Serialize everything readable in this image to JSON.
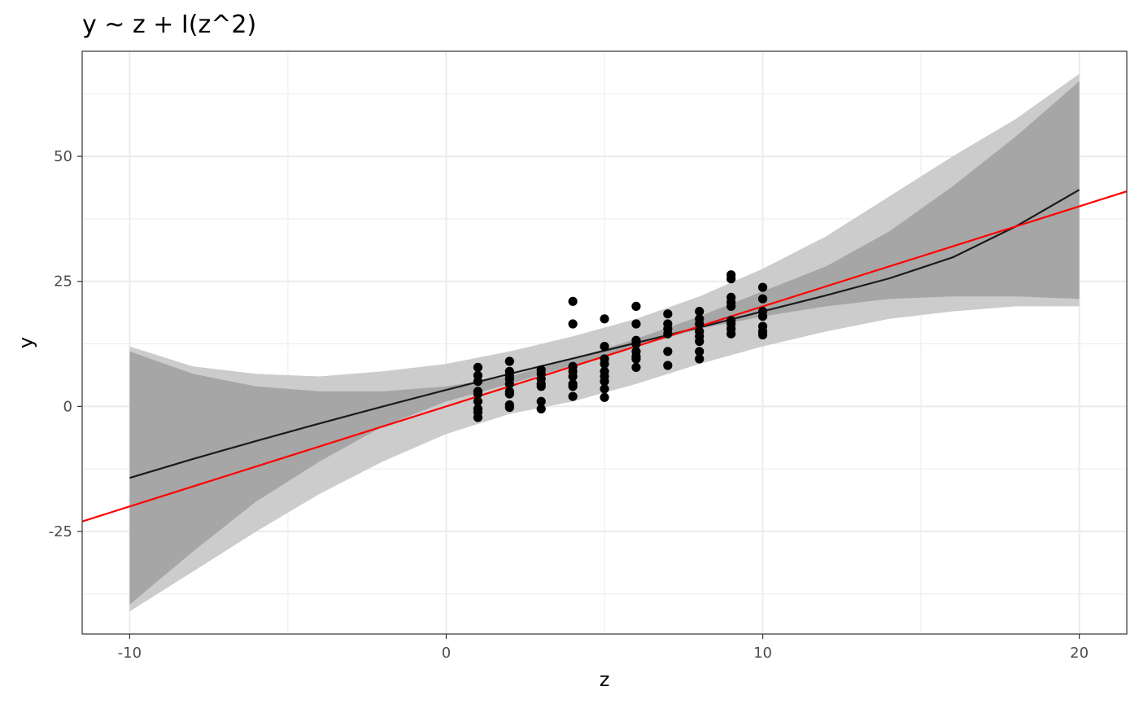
{
  "chart_data": {
    "type": "scatter",
    "title": "y ~ z + I(z^2)",
    "xlabel": "z",
    "ylabel": "y",
    "xlim": [
      -11.5,
      21.5
    ],
    "ylim": [
      -45.5,
      71
    ],
    "x_ticks": [
      -10,
      0,
      10,
      20
    ],
    "x_tick_labels": [
      "-10",
      "0",
      "10",
      "20"
    ],
    "x_minor_ticks": [
      -5,
      5,
      15
    ],
    "y_ticks": [
      -25,
      0,
      25,
      50
    ],
    "y_tick_labels": [
      "-25",
      "0",
      "25",
      "50"
    ],
    "y_minor_ticks": [
      -37.5,
      -12.5,
      12.5,
      37.5,
      62.5
    ],
    "grid": true,
    "legend": "none",
    "colors": {
      "points": "#000000",
      "fit_curve": "#1a1a1a",
      "reference_line": "#ff0000",
      "outer_band": "#cccccc",
      "inner_band": "#a6a6a6",
      "grid": "#ebebeb",
      "panel_border": "#333333"
    },
    "points": [
      {
        "x": 1,
        "y": 7.8
      },
      {
        "x": 1,
        "y": 6.2
      },
      {
        "x": 1,
        "y": 5.0
      },
      {
        "x": 1,
        "y": 3.0
      },
      {
        "x": 1,
        "y": 2.5
      },
      {
        "x": 1,
        "y": 1.0
      },
      {
        "x": 1,
        "y": -0.5
      },
      {
        "x": 1,
        "y": -1.2
      },
      {
        "x": 1,
        "y": -2.2
      },
      {
        "x": 2,
        "y": 9.0
      },
      {
        "x": 2,
        "y": 7.0
      },
      {
        "x": 2,
        "y": 6.2
      },
      {
        "x": 2,
        "y": 5.5
      },
      {
        "x": 2,
        "y": 4.5
      },
      {
        "x": 2,
        "y": 3.0
      },
      {
        "x": 2,
        "y": 2.5
      },
      {
        "x": 2,
        "y": 0.3
      },
      {
        "x": 2,
        "y": -0.2
      },
      {
        "x": 3,
        "y": 7.3
      },
      {
        "x": 3,
        "y": 6.5
      },
      {
        "x": 3,
        "y": 5.5
      },
      {
        "x": 3,
        "y": 4.5
      },
      {
        "x": 3,
        "y": 4.0
      },
      {
        "x": 3,
        "y": 1.0
      },
      {
        "x": 3,
        "y": -0.5
      },
      {
        "x": 4,
        "y": 21.0
      },
      {
        "x": 4,
        "y": 16.5
      },
      {
        "x": 4,
        "y": 8.0
      },
      {
        "x": 4,
        "y": 7.0
      },
      {
        "x": 4,
        "y": 6.0
      },
      {
        "x": 4,
        "y": 4.5
      },
      {
        "x": 4,
        "y": 4.0
      },
      {
        "x": 4,
        "y": 2.0
      },
      {
        "x": 5,
        "y": 17.5
      },
      {
        "x": 5,
        "y": 12.0
      },
      {
        "x": 5,
        "y": 9.5
      },
      {
        "x": 5,
        "y": 8.5
      },
      {
        "x": 5,
        "y": 7.0
      },
      {
        "x": 5,
        "y": 6.0
      },
      {
        "x": 5,
        "y": 5.0
      },
      {
        "x": 5,
        "y": 3.5
      },
      {
        "x": 5,
        "y": 1.8
      },
      {
        "x": 6,
        "y": 20.0
      },
      {
        "x": 6,
        "y": 16.5
      },
      {
        "x": 6,
        "y": 13.2
      },
      {
        "x": 6,
        "y": 12.5
      },
      {
        "x": 6,
        "y": 11.0
      },
      {
        "x": 6,
        "y": 10.0
      },
      {
        "x": 6,
        "y": 9.5
      },
      {
        "x": 6,
        "y": 7.8
      },
      {
        "x": 7,
        "y": 18.5
      },
      {
        "x": 7,
        "y": 16.5
      },
      {
        "x": 7,
        "y": 15.5
      },
      {
        "x": 7,
        "y": 14.5
      },
      {
        "x": 7,
        "y": 11.0
      },
      {
        "x": 7,
        "y": 8.2
      },
      {
        "x": 8,
        "y": 19.0
      },
      {
        "x": 8,
        "y": 17.5
      },
      {
        "x": 8,
        "y": 16.5
      },
      {
        "x": 8,
        "y": 15.0
      },
      {
        "x": 8,
        "y": 14.0
      },
      {
        "x": 8,
        "y": 13.0
      },
      {
        "x": 8,
        "y": 11.0
      },
      {
        "x": 8,
        "y": 9.5
      },
      {
        "x": 9,
        "y": 26.3
      },
      {
        "x": 9,
        "y": 25.5
      },
      {
        "x": 9,
        "y": 21.8
      },
      {
        "x": 9,
        "y": 20.8
      },
      {
        "x": 9,
        "y": 20.0
      },
      {
        "x": 9,
        "y": 17.2
      },
      {
        "x": 9,
        "y": 16.5
      },
      {
        "x": 9,
        "y": 15.5
      },
      {
        "x": 9,
        "y": 14.5
      },
      {
        "x": 10,
        "y": 23.8
      },
      {
        "x": 10,
        "y": 21.5
      },
      {
        "x": 10,
        "y": 19.0
      },
      {
        "x": 10,
        "y": 18.0
      },
      {
        "x": 10,
        "y": 16.0
      },
      {
        "x": 10,
        "y": 15.0
      },
      {
        "x": 10,
        "y": 14.3
      }
    ],
    "fit_curve": {
      "x": [
        -10,
        -8,
        -6,
        -4,
        -2,
        0,
        2,
        4,
        6,
        8,
        10,
        12,
        14,
        16,
        18,
        20
      ],
      "y": [
        -14.3,
        -10.5,
        -6.9,
        -3.4,
        0.0,
        3.3,
        6.5,
        9.6,
        12.7,
        15.8,
        19.0,
        22.2,
        25.6,
        29.8,
        36.0,
        43.3
      ]
    },
    "inner_band": {
      "x": [
        -10,
        -8,
        -6,
        -4,
        -2,
        0,
        2,
        4,
        6,
        8,
        10,
        12,
        14,
        16,
        18,
        20
      ],
      "upper": [
        11.0,
        6.5,
        4.0,
        3.0,
        3.0,
        4.0,
        6.0,
        9.5,
        13.5,
        18.0,
        23.0,
        28.0,
        35.0,
        44.0,
        54.0,
        65.0
      ],
      "lower": [
        -39.6,
        -29.0,
        -19.0,
        -11.0,
        -4.0,
        1.0,
        4.5,
        8.2,
        12.0,
        15.5,
        18.0,
        20.0,
        21.5,
        22.0,
        22.0,
        21.5
      ]
    },
    "outer_band": {
      "x": [
        -10,
        -8,
        -6,
        -4,
        -2,
        0,
        2,
        4,
        6,
        8,
        10,
        12,
        14,
        16,
        18,
        20
      ],
      "upper": [
        12.0,
        8.0,
        6.5,
        6.0,
        7.0,
        8.5,
        11.0,
        14.0,
        17.5,
        22.0,
        27.5,
        34.0,
        42.0,
        50.0,
        57.5,
        66.5
      ],
      "lower": [
        -41.0,
        -33.0,
        -25.0,
        -17.5,
        -11.0,
        -5.5,
        -1.5,
        1.0,
        4.5,
        8.5,
        12.0,
        15.0,
        17.5,
        19.0,
        20.0,
        20.0
      ]
    },
    "reference_line": {
      "x": [
        -11.5,
        21.5
      ],
      "y": [
        -23.0,
        43.0
      ]
    }
  }
}
